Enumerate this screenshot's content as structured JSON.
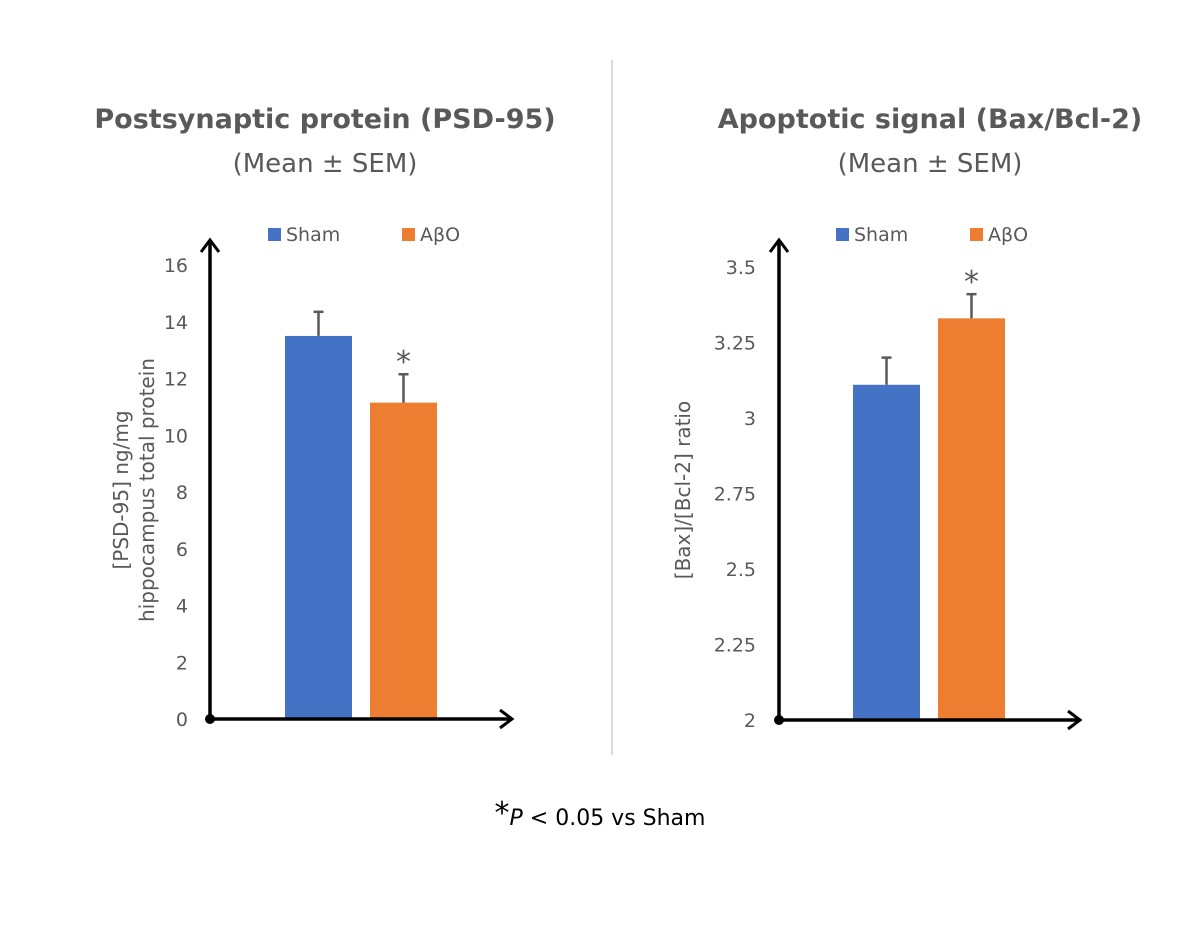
{
  "footnote": {
    "star": "*",
    "p": "P",
    "rest": " < 0.05 vs Sham"
  },
  "colors": {
    "sham": "#4472C4",
    "abo": "#ED7D31",
    "text": "#595959",
    "axis": "#000000",
    "divider": "#D9D9D9"
  },
  "chart_data": [
    {
      "type": "bar",
      "title": "Postsynaptic protein (PSD-95)",
      "subtitle": "(Mean ± SEM)",
      "ylabel_lines": [
        "[PSD-95] ng/mg",
        "hippocampus total protein"
      ],
      "xlabel": "",
      "ylim": [
        0,
        16
      ],
      "yticks": [
        0,
        2,
        4,
        6,
        8,
        10,
        12,
        14,
        16
      ],
      "ytick_labels": [
        "0",
        "2",
        "4",
        "6",
        "8",
        "10",
        "12",
        "14",
        "16"
      ],
      "legend": "top",
      "grid": false,
      "series": [
        {
          "name": "Sham",
          "value": 13.5,
          "sem": 0.85,
          "significant": false
        },
        {
          "name": "AβO",
          "value": 11.15,
          "sem": 1.0,
          "significant": true
        }
      ],
      "significance_mark": "*"
    },
    {
      "type": "bar",
      "title": "Apoptotic signal (Bax/Bcl-2)",
      "subtitle": "(Mean ± SEM)",
      "ylabel_lines": [
        "[Bax]/[Bcl-2] ratio"
      ],
      "xlabel": "",
      "ylim": [
        2,
        3.5
      ],
      "yticks": [
        2,
        2.25,
        2.5,
        2.75,
        3,
        3.25,
        3.5
      ],
      "ytick_labels": [
        "2",
        "2.25",
        "2.5",
        "2.75",
        "3",
        "3.25",
        "3.5"
      ],
      "legend": "top",
      "grid": false,
      "series": [
        {
          "name": "Sham",
          "value": 3.11,
          "sem": 0.09,
          "significant": false
        },
        {
          "name": "AβO",
          "value": 3.33,
          "sem": 0.08,
          "significant": true
        }
      ],
      "significance_mark": "*"
    }
  ]
}
